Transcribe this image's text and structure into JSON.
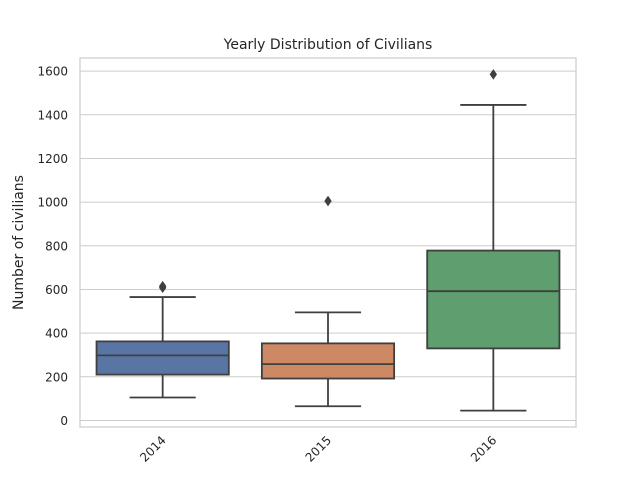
{
  "chart_data": {
    "type": "box",
    "title": "Yearly Distribution of Civilians",
    "xlabel": "",
    "ylabel": "Number of civilians",
    "ylim": [
      -30,
      1660
    ],
    "yticks": [
      0,
      200,
      400,
      600,
      800,
      1000,
      1200,
      1400,
      1600
    ],
    "grid": "horizontal",
    "categories": [
      "2014",
      "2015",
      "2016"
    ],
    "boxes": [
      {
        "category": "2014",
        "color": "#5975a4",
        "whisker_low": 105,
        "q1": 210,
        "median": 298,
        "q3": 362,
        "whisker_high": 565,
        "outliers": [
          608,
          615
        ]
      },
      {
        "category": "2015",
        "color": "#cc8963",
        "whisker_low": 65,
        "q1": 192,
        "median": 258,
        "q3": 353,
        "whisker_high": 495,
        "outliers": [
          1005
        ]
      },
      {
        "category": "2016",
        "color": "#5f9e6e",
        "whisker_low": 45,
        "q1": 330,
        "median": 592,
        "q3": 778,
        "whisker_high": 1445,
        "outliers": [
          1585
        ]
      }
    ]
  }
}
